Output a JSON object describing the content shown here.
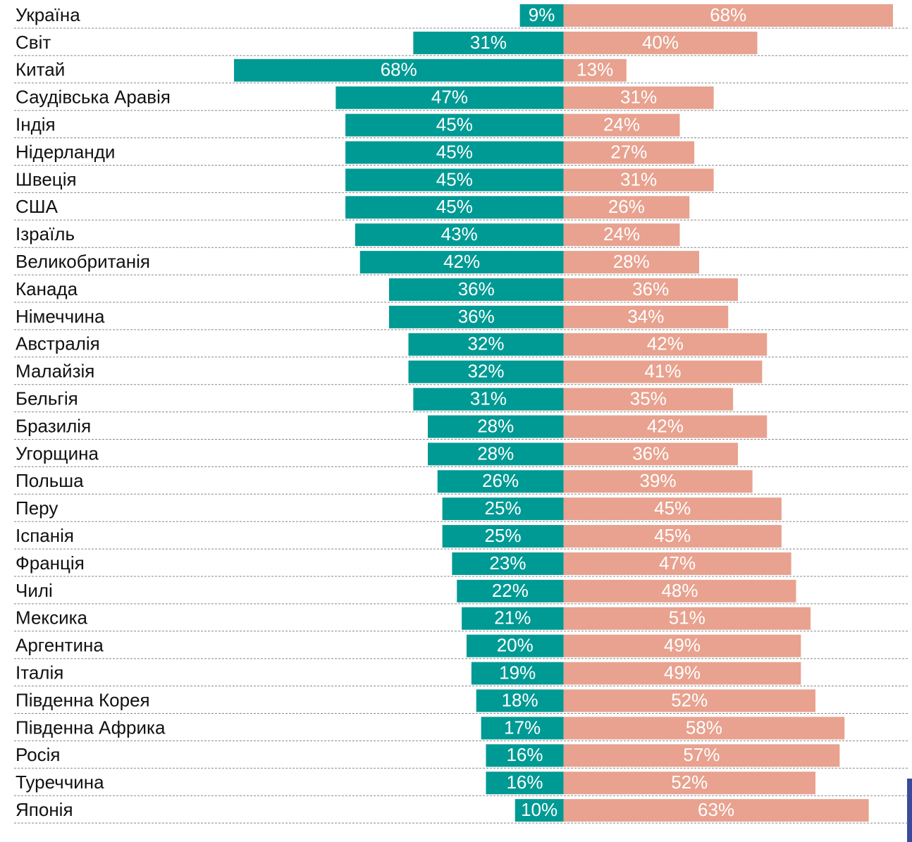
{
  "chart_data": {
    "type": "diverging-bar",
    "categories": [
      "Україна",
      "Світ",
      "Китай",
      "Саудівська Аравія",
      "Індія",
      "Нідерланди",
      "Швеція",
      "США",
      "Ізраїль",
      "Великобританія",
      "Канада",
      "Німеччина",
      "Австралія",
      "Малайзія",
      "Бельгія",
      "Бразилія",
      "Угорщина",
      "Польша",
      "Перу",
      "Іспанія",
      "Франція",
      "Чилі",
      "Мексика",
      "Аргентина",
      "Італія",
      "Південна Корея",
      "Південна Африка",
      "Росія",
      "Туреччина",
      "Японія"
    ],
    "series": [
      {
        "color": "#009a94",
        "side": "left",
        "values": [
          9,
          31,
          68,
          47,
          45,
          45,
          45,
          45,
          43,
          42,
          36,
          36,
          32,
          32,
          31,
          28,
          28,
          26,
          25,
          25,
          23,
          22,
          21,
          20,
          19,
          18,
          17,
          16,
          16,
          10
        ],
        "value_labels": [
          "9%",
          "31%",
          "68%",
          "47%",
          "45%",
          "45%",
          "45%",
          "45%",
          "43%",
          "42%",
          "36%",
          "36%",
          "32%",
          "32%",
          "31%",
          "28%",
          "28%",
          "26%",
          "25%",
          "25%",
          "23%",
          "22%",
          "21%",
          "20%",
          "19%",
          "18%",
          "17%",
          "16%",
          "16%",
          "10%"
        ]
      },
      {
        "color": "#e8a28f",
        "side": "right",
        "values": [
          68,
          40,
          13,
          31,
          24,
          27,
          31,
          26,
          24,
          28,
          36,
          34,
          42,
          41,
          35,
          42,
          36,
          39,
          45,
          45,
          47,
          48,
          51,
          49,
          49,
          52,
          58,
          57,
          52,
          63
        ],
        "value_labels": [
          "68%",
          "40%",
          "13%",
          "31%",
          "24%",
          "27%",
          "31%",
          "26%",
          "24%",
          "28%",
          "36%",
          "34%",
          "42%",
          "41%",
          "35%",
          "42%",
          "36%",
          "39%",
          "45%",
          "45%",
          "47%",
          "48%",
          "51%",
          "49%",
          "49%",
          "52%",
          "58%",
          "57%",
          "52%",
          "63%"
        ]
      }
    ],
    "xlim": [
      -68,
      68
    ]
  }
}
